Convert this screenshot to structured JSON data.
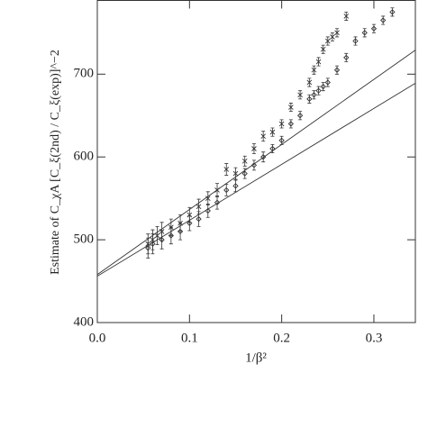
{
  "chart_data": {
    "type": "scatter",
    "xlabel": "1/β²",
    "ylabel": "Estimate of  C_χA [C_ξ(2nd) / C_ξ(exp)]^−2",
    "xlim": [
      0,
      0.345
    ],
    "ylim": [
      400,
      789
    ],
    "xticks": [
      {
        "value": 0,
        "label": "0.0"
      },
      0.1,
      0.2,
      0.3
    ],
    "yticks": [
      400,
      500,
      600,
      700
    ],
    "color": "#333",
    "series": [
      {
        "marker": "x",
        "x": [
          0.055,
          0.06,
          0.065,
          0.07,
          0.08,
          0.09,
          0.1,
          0.11,
          0.12,
          0.13,
          0.14,
          0.15,
          0.16,
          0.17,
          0.18,
          0.19,
          0.2,
          0.21,
          0.22,
          0.23,
          0.235,
          0.24,
          0.245,
          0.25,
          0.255,
          0.26,
          0.27
        ],
        "values": [
          495,
          500,
          505,
          510,
          515,
          520,
          530,
          540,
          550,
          560,
          585,
          580,
          595,
          610,
          625,
          630,
          640,
          660,
          675,
          690,
          705,
          715,
          730,
          740,
          745,
          750,
          770
        ],
        "errors": [
          12,
          12,
          11,
          11,
          10,
          10,
          9,
          9,
          8,
          8,
          7,
          7,
          6,
          6,
          6,
          5,
          5,
          5,
          5,
          5,
          5,
          5,
          5,
          5,
          5,
          5,
          5
        ]
      },
      {
        "marker": "diamond",
        "x": [
          0.055,
          0.06,
          0.07,
          0.08,
          0.09,
          0.1,
          0.11,
          0.12,
          0.13,
          0.14,
          0.15,
          0.16,
          0.17,
          0.18,
          0.19,
          0.2,
          0.21,
          0.22,
          0.23,
          0.235,
          0.24,
          0.245,
          0.25,
          0.26,
          0.27,
          0.28,
          0.29,
          0.3,
          0.31,
          0.32
        ],
        "values": [
          490,
          495,
          500,
          505,
          510,
          520,
          525,
          535,
          545,
          560,
          565,
          580,
          590,
          600,
          610,
          620,
          640,
          650,
          670,
          675,
          680,
          685,
          690,
          705,
          720,
          740,
          750,
          755,
          765,
          775
        ],
        "errors": [
          12,
          12,
          11,
          10,
          10,
          9,
          9,
          8,
          8,
          7,
          7,
          6,
          6,
          6,
          5,
          5,
          5,
          5,
          5,
          5,
          5,
          5,
          5,
          5,
          5,
          5,
          5,
          5,
          5,
          5
        ]
      }
    ],
    "fit_lines": [
      {
        "x": [
          0,
          0.345
        ],
        "values": [
          458,
          729
        ]
      },
      {
        "x": [
          0,
          0.345
        ],
        "values": [
          456,
          689
        ]
      }
    ]
  }
}
